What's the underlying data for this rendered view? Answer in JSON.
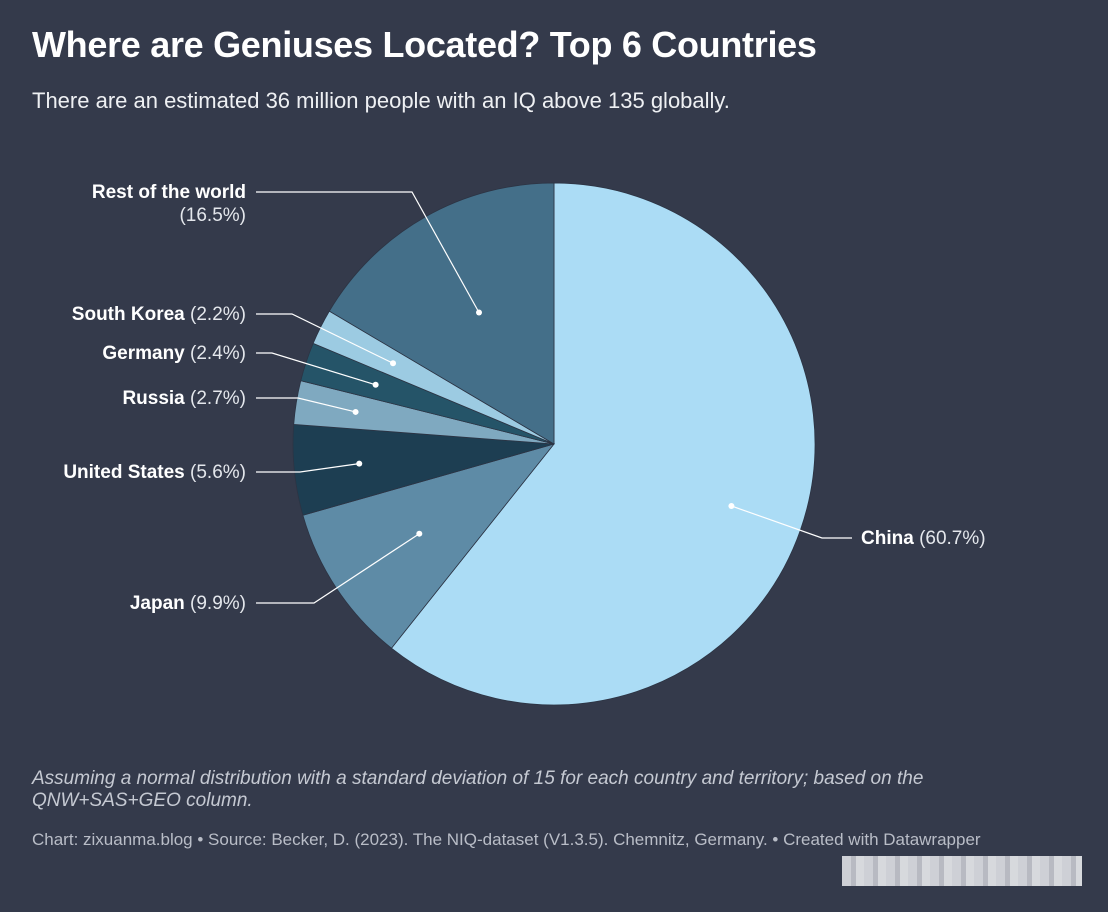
{
  "header": {
    "title": "Where are Geniuses Located? Top 6 Countries",
    "subtitle": "There are an estimated 36 million people with an IQ above 135 globally."
  },
  "chart_data": {
    "type": "pie",
    "title": "Where are Geniuses Located? Top 6 Countries",
    "subtitle": "There are an estimated 36 million people with an IQ above 135 globally.",
    "slices": [
      {
        "label": "China",
        "value": 60.7,
        "pct_text": "(60.7%)",
        "color": "#abdcf5"
      },
      {
        "label": "Japan",
        "value": 9.9,
        "pct_text": "(9.9%)",
        "color": "#5e8ba6"
      },
      {
        "label": "United States",
        "value": 5.6,
        "pct_text": "(5.6%)",
        "color": "#1d3e52"
      },
      {
        "label": "Russia",
        "value": 2.7,
        "pct_text": "(2.7%)",
        "color": "#7fa9c0"
      },
      {
        "label": "Germany",
        "value": 2.4,
        "pct_text": "(2.4%)",
        "color": "#255468"
      },
      {
        "label": "South Korea",
        "value": 2.2,
        "pct_text": "(2.2%)",
        "color": "#9ccbe2"
      },
      {
        "label": "Rest of the world",
        "value": 16.5,
        "pct_text": "(16.5%)",
        "color": "#446f89"
      }
    ]
  },
  "footer": {
    "notes": "Assuming a normal distribution with a standard deviation of 15 for each country and territory; based on the QNW+SAS+GEO column.",
    "credits": "Chart: zixuanma.blog • Source: Becker, D. (2023). The NIQ-dataset (V1.3.5). Chemnitz, Germany. • Created with Datawrapper"
  }
}
